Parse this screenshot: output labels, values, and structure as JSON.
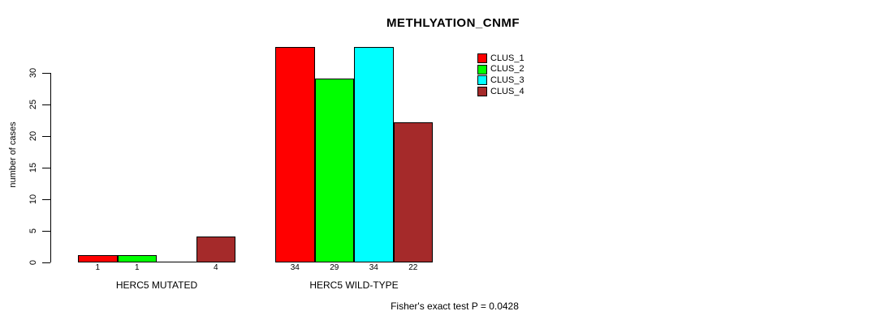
{
  "chart_data": {
    "type": "bar",
    "title": "METHLYATION_CNMF",
    "ylabel": "number of cases",
    "ylim": [
      0,
      30
    ],
    "yticks": [
      0,
      5,
      10,
      15,
      20,
      25,
      30
    ],
    "categories": [
      "HERC5 MUTATED",
      "HERC5 WILD-TYPE"
    ],
    "series": [
      {
        "name": "CLUS_1",
        "color": "#ff0000",
        "values": [
          1,
          34
        ]
      },
      {
        "name": "CLUS_2",
        "color": "#00ff00",
        "values": [
          1,
          29
        ]
      },
      {
        "name": "CLUS_3",
        "color": "#00ffff",
        "values": [
          0,
          34
        ]
      },
      {
        "name": "CLUS_4",
        "color": "#a52a2a",
        "values": [
          4,
          22
        ]
      }
    ],
    "groups": [
      {
        "label": "HERC5 MUTATED",
        "values": [
          1,
          1,
          0,
          4
        ],
        "bar_labels": [
          "1",
          "1",
          "",
          "4"
        ]
      },
      {
        "label": "HERC5 WILD-TYPE",
        "values": [
          34,
          29,
          34,
          22
        ],
        "bar_labels": [
          "34",
          "29",
          "34",
          "22"
        ]
      }
    ],
    "legend_position": "top-right",
    "grid": false,
    "annotation": "Fisher's exact test P = 0.0428"
  }
}
